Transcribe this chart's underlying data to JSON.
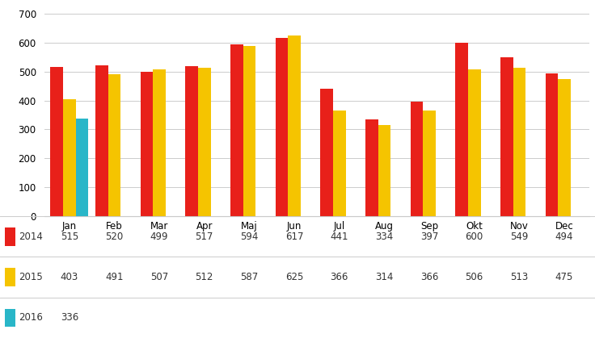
{
  "months": [
    "Jan",
    "Feb",
    "Mar",
    "Apr",
    "Maj",
    "Jun",
    "Jul",
    "Aug",
    "Sep",
    "Okt",
    "Nov",
    "Dec"
  ],
  "series": {
    "2014": [
      515,
      520,
      499,
      517,
      594,
      617,
      441,
      334,
      397,
      600,
      549,
      494
    ],
    "2015": [
      403,
      491,
      507,
      512,
      587,
      625,
      366,
      314,
      366,
      506,
      513,
      475
    ],
    "2016": [
      336,
      null,
      null,
      null,
      null,
      null,
      null,
      null,
      null,
      null,
      null,
      null
    ]
  },
  "colors": {
    "2014": "#E8201A",
    "2015": "#F5C400",
    "2016": "#29B6C8"
  },
  "ylim": [
    0,
    700
  ],
  "yticks": [
    0,
    100,
    200,
    300,
    400,
    500,
    600,
    700
  ],
  "bar_width": 0.28,
  "table_rows": [
    [
      "2014",
      "515",
      "520",
      "499",
      "517",
      "594",
      "617",
      "441",
      "334",
      "397",
      "600",
      "549",
      "494"
    ],
    [
      "2015",
      "403",
      "491",
      "507",
      "512",
      "587",
      "625",
      "366",
      "314",
      "366",
      "506",
      "513",
      "475"
    ],
    [
      "2016",
      "336",
      "",
      "",
      "",
      "",
      "",
      "",
      "",
      "",
      "",
      "",
      ""
    ]
  ]
}
